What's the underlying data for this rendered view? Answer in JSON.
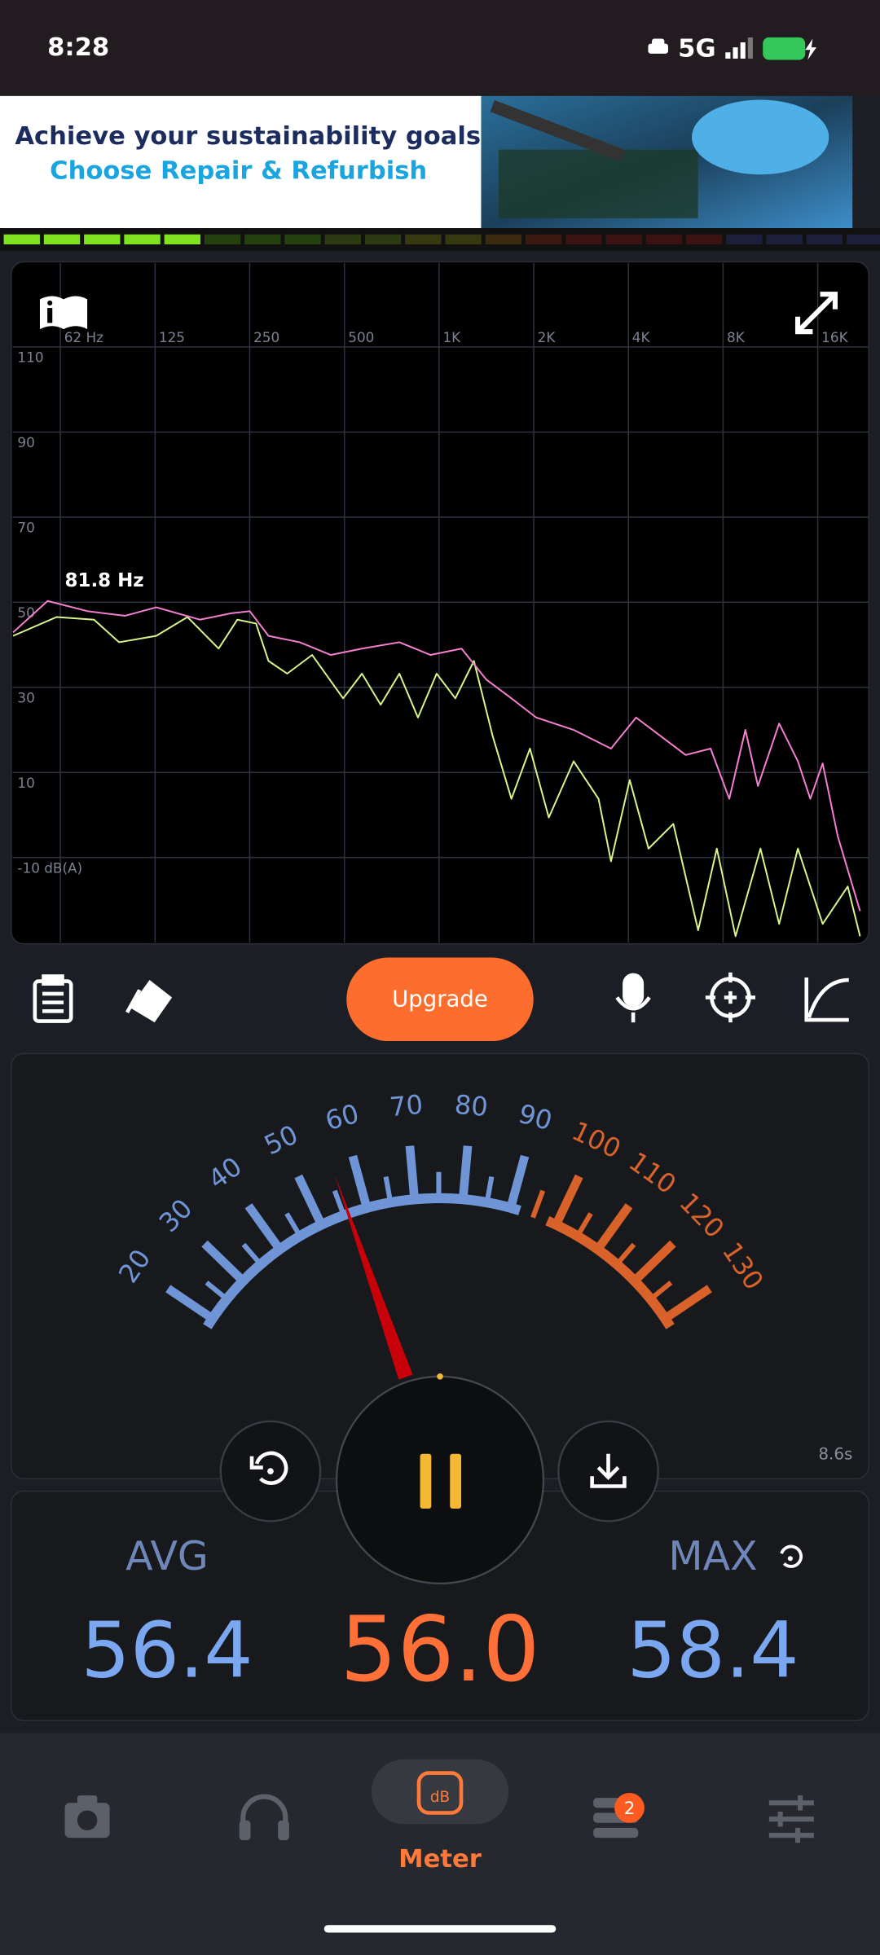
{
  "status_bar": {
    "time": "8:28",
    "network": "5G"
  },
  "ad": {
    "line1": "Achieve your sustainability goals",
    "line2": "Choose Repair & Refurbish"
  },
  "chart_data": {
    "type": "line",
    "annotation": "81.8 Hz",
    "xscale": "log",
    "grid": true,
    "xlim": [
      44,
      23250
    ],
    "ylim": [
      -30,
      130
    ],
    "xticks": [
      {
        "value": 62.5,
        "label": "62 Hz"
      },
      125,
      250,
      500,
      {
        "value": 1000,
        "label": "1K"
      },
      {
        "value": 2000,
        "label": "2K"
      },
      {
        "value": 4000,
        "label": "4K"
      },
      {
        "value": 8000,
        "label": "8K"
      },
      {
        "value": 16000,
        "label": "16K"
      }
    ],
    "yticks": [
      110,
      90,
      70,
      50,
      30,
      10,
      {
        "value": -10,
        "label": "-10 dB(A)"
      }
    ],
    "series": [
      {
        "color": "#f47fd0",
        "x": [
          44.2,
          56.9,
          76.3,
          100.4,
          126,
          173.6,
          218.1,
          250,
          286.7,
          360.3,
          452.6,
          568.6,
          747.6,
          939.1,
          1179,
          1414,
          1698,
          2036,
          2679,
          3522,
          4229,
          5073,
          6086,
          7305,
          8370,
          9420,
          10330,
          12060,
          13830,
          15160,
          16590,
          18520,
          21810
        ],
        "values": [
          42.9,
          50.3,
          47.9,
          46.8,
          48.8,
          45.9,
          47.4,
          47.9,
          42.1,
          40.6,
          37.6,
          39.1,
          40.6,
          37.6,
          39.1,
          31.8,
          27.4,
          22.9,
          20.0,
          15.6,
          22.9,
          18.5,
          14.1,
          15.6,
          3.8,
          20.0,
          6.8,
          21.5,
          12.6,
          3.8,
          12.1,
          -5.0,
          -22.6
        ]
      },
      {
        "color": "#d8f58a",
        "x": [
          44.2,
          60.8,
          79.9,
          96,
          126,
          158.5,
          199,
          228.2,
          261.7,
          286.7,
          328.9,
          394.8,
          495.5,
          568.6,
          651.9,
          747.6,
          856.6,
          982.5,
          1126,
          1291,
          1481,
          1698,
          1946,
          2233,
          2679,
          3214,
          3522,
          4040,
          4634,
          5557,
          6667,
          7646,
          8768,
          10520,
          12060,
          13830,
          16590,
          19930,
          21810
        ],
        "values": [
          42.1,
          46.5,
          45.9,
          40.6,
          42.1,
          46.5,
          39.1,
          45.9,
          45.0,
          36.2,
          33.2,
          37.6,
          27.4,
          33.2,
          25.9,
          33.2,
          22.9,
          33.2,
          27.4,
          36.2,
          18.5,
          3.8,
          15.6,
          -0.6,
          12.6,
          3.8,
          -10.9,
          8.2,
          -7.9,
          -2.1,
          -27.1,
          -7.9,
          -28.5,
          -7.9,
          -25.6,
          -7.9,
          -25.6,
          -16.8,
          -28.5
        ]
      }
    ]
  },
  "toolbar": {
    "upgrade": "Upgrade"
  },
  "gauge": {
    "min": 20,
    "max": 130,
    "ticks": [
      20,
      30,
      40,
      50,
      60,
      70,
      80,
      90,
      100,
      110,
      120,
      130
    ],
    "zones": [
      {
        "from": 20,
        "to": 90,
        "color": "#6f95d6"
      },
      {
        "from": 100,
        "to": 130,
        "color": "#d9622b"
      }
    ],
    "elapsed": "8.6s"
  },
  "readout": {
    "avg_label": "AVG",
    "avg": 56.4,
    "current": {
      "value": 56,
      "label": "56.0"
    },
    "max_label": "MAX",
    "max": 58.4
  },
  "nav": {
    "active": "Meter",
    "badge": 2
  }
}
